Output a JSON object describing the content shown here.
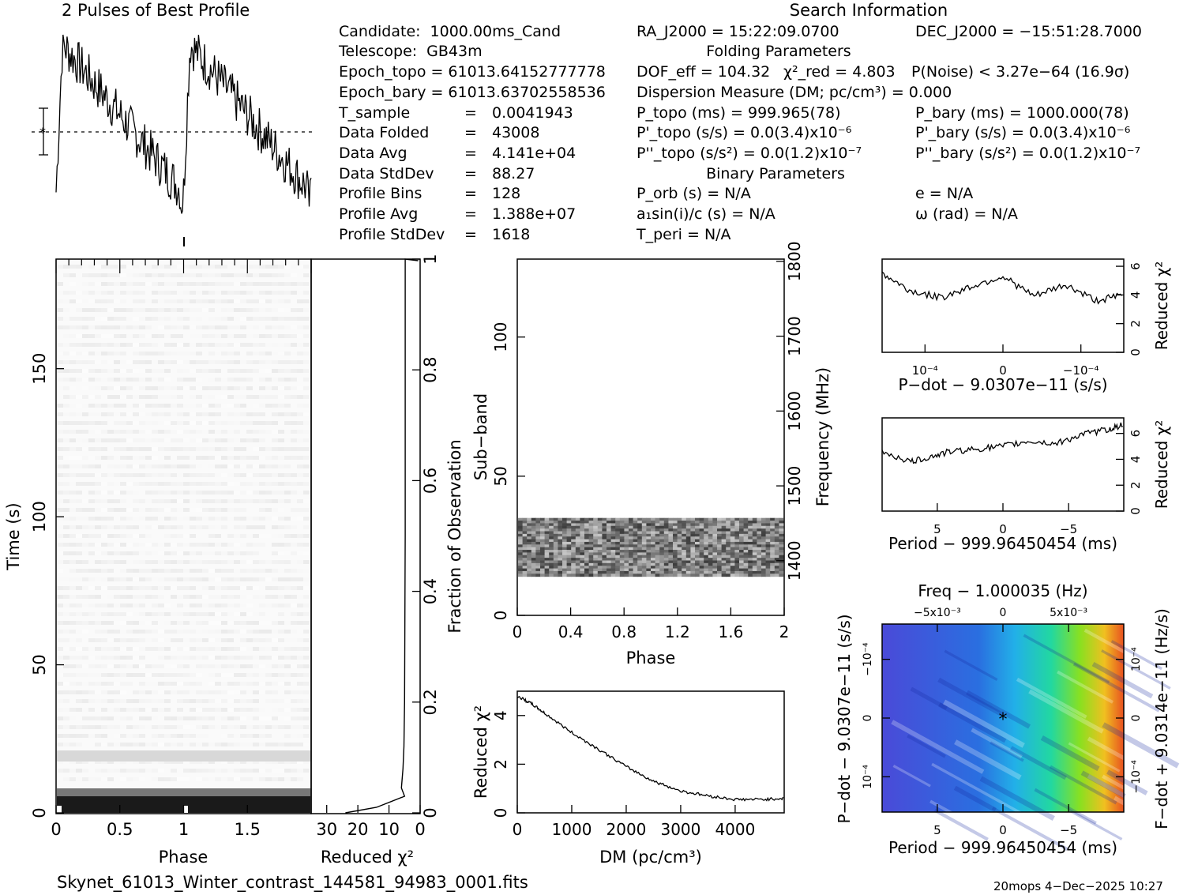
{
  "profile": {
    "title": "2 Pulses of Best Profile"
  },
  "info": {
    "candidate_label": "Candidate:",
    "candidate": "1000.00ms_Cand",
    "telescope_label": "Telescope:",
    "telescope": "GB43m",
    "epoch_topo": "Epoch_topo = 61013.64152777778",
    "epoch_bary": "Epoch_bary = 61013.63702558536",
    "tsample_label": "T_sample",
    "tsample": "0.0041943",
    "data_folded_label": "Data Folded",
    "data_folded": "43008",
    "data_avg_label": "Data Avg",
    "data_avg": "4.141e+04",
    "data_stddev_label": "Data StdDev",
    "data_stddev": "88.27",
    "profile_bins_label": "Profile Bins",
    "profile_bins": "128",
    "profile_avg_label": "Profile Avg",
    "profile_avg": "1.388e+07",
    "profile_stddev_label": "Profile StdDev",
    "profile_stddev": "1618",
    "eq": "="
  },
  "search": {
    "title": "Search Information",
    "ra": "RA_J2000 = 15:22:09.0700",
    "dec": "DEC_J2000 = −15:51:28.7000",
    "folding_title": "Folding Parameters",
    "dof": "DOF_eff = 104.32",
    "chi2": "χ²_red = 4.803",
    "pnoise": "P(Noise) < 3.27e−64   (16.9σ)",
    "dm": "Dispersion Measure (DM; pc/cm³) = 0.000",
    "ptopo": "P_topo (ms) =  999.965(78)",
    "pbary": "P_bary (ms) =  1000.000(78)",
    "pdtopo": "P'_topo (s/s) = 0.0(3.4)x10⁻⁶",
    "pdbary": "P'_bary (s/s) = 0.0(3.4)x10⁻⁶",
    "pddtopo": "P''_topo (s/s²) = 0.0(1.2)x10⁻⁷",
    "pddbary": "P''_bary (s/s²) = 0.0(1.2)x10⁻⁷",
    "binary_title": "Binary Parameters",
    "porb": "P_orb (s) = N/A",
    "ecc": "e = N/A",
    "a1": "a₁sin(i)/c (s) = N/A",
    "omega": "ω (rad) = N/A",
    "tperi": "T_peri = N/A"
  },
  "footer": {
    "filename": "Skynet_61013_Winter_contrast_144581_94983_0001.fits",
    "stamp": "20mops   4−Dec−2025 10:27"
  },
  "colors": {
    "line": "#000000",
    "background": "#ffffff"
  },
  "chart_data": [
    {
      "type": "line",
      "id": "profile",
      "title": "2 Pulses of Best Profile",
      "x_range": [
        0,
        2
      ],
      "description_points_y": [
        0.05,
        0.95,
        0.8,
        0.6,
        0.45,
        0.3,
        0.2,
        0.05,
        0.95,
        0.8,
        0.6,
        0.45,
        0.3,
        0.2
      ]
    },
    {
      "type": "heatmap",
      "id": "time-phase",
      "xlabel": "Phase",
      "ylabel": "Time (s)",
      "x_ticks": [
        "0",
        "0.5",
        "1",
        "1.5"
      ],
      "x_tick_values": [
        0,
        0.5,
        1,
        1.5
      ],
      "y_ticks": [
        "0",
        "50",
        "100",
        "150"
      ],
      "y_tick_values": [
        0,
        50,
        100,
        150
      ],
      "xlim": [
        0,
        2
      ],
      "ylim": [
        0,
        187
      ]
    },
    {
      "type": "line",
      "id": "time-redchi",
      "xlabel": "Reduced χ²",
      "x_ticks": [
        "30",
        "20",
        "10",
        "0"
      ],
      "x_tick_values": [
        30,
        20,
        10,
        0
      ],
      "y2label": "Fraction of Observation",
      "y2_ticks": [
        "0",
        "0.2",
        "0.4",
        "0.6",
        "0.8",
        "1"
      ],
      "y2_tick_values": [
        0,
        0.2,
        0.4,
        0.6,
        0.8,
        1
      ],
      "xlim": [
        35,
        0
      ],
      "points_frac": [
        0,
        0.01,
        0.03,
        0.045,
        0.08,
        0.12,
        0.2,
        0.35,
        0.5,
        0.7,
        0.85,
        0.95,
        1.0
      ],
      "points_chi": [
        24,
        14,
        5,
        6,
        5.5,
        5.2,
        5.0,
        4.9,
        4.8,
        4.8,
        4.8,
        4.8,
        4.8
      ]
    },
    {
      "type": "heatmap",
      "id": "subband-phase",
      "xlabel": "Phase",
      "ylabel": "Sub−band",
      "y2label": "Frequency (MHz)",
      "x_ticks": [
        "0",
        "0.4",
        "0.8",
        "1.2",
        "1.6",
        "2"
      ],
      "x_tick_values": [
        0,
        0.4,
        0.8,
        1.2,
        1.6,
        2
      ],
      "y_ticks": [
        "0",
        "50",
        "100"
      ],
      "y_tick_values": [
        0,
        50,
        100
      ],
      "y2_ticks": [
        "1400",
        "1500",
        "1600",
        "1700",
        "1800"
      ],
      "y2_tick_values": [
        1400,
        1500,
        1600,
        1700,
        1800
      ],
      "ylim": [
        0,
        128
      ],
      "freq_lim": [
        1327,
        1803
      ],
      "active_subbands": [
        14,
        35
      ]
    },
    {
      "type": "line",
      "id": "dm-chi",
      "xlabel": "DM (pc/cm³)",
      "ylabel": "Reduced χ²",
      "x_ticks": [
        "0",
        "1000",
        "2000",
        "3000",
        "4000"
      ],
      "x_tick_values": [
        0,
        1000,
        2000,
        3000,
        4000
      ],
      "y_ticks": [
        "0",
        "2",
        "4"
      ],
      "y_tick_values": [
        0,
        2,
        4
      ],
      "xlim": [
        0,
        4900
      ],
      "ylim": [
        0,
        5
      ],
      "x": [
        0,
        250,
        500,
        1000,
        1500,
        2000,
        2500,
        3000,
        3500,
        4000,
        4500,
        4900
      ],
      "y": [
        4.8,
        4.5,
        4.1,
        3.3,
        2.6,
        1.9,
        1.3,
        0.9,
        0.7,
        0.55,
        0.55,
        0.6
      ]
    },
    {
      "type": "line",
      "id": "pdot-chi",
      "xlabel": "P−dot − 9.0307e−11 (s/s)",
      "y2label": "Reduced χ²",
      "x_ticks": [
        "10⁻⁴",
        "0",
        "−10⁻⁴"
      ],
      "x_tick_values": [
        0.0001,
        0,
        -0.0001
      ],
      "y2_ticks": [
        "0",
        "2",
        "4",
        "6"
      ],
      "y2_tick_values": [
        0,
        2,
        4,
        6
      ],
      "xlim": [
        0.000155,
        -0.000155
      ],
      "ylim": [
        0,
        6.5
      ],
      "x": [
        0.000155,
        0.00012,
        8e-05,
        4e-05,
        0,
        -4e-05,
        -8e-05,
        -0.00012,
        -0.000155
      ],
      "y": [
        5.5,
        4.3,
        3.8,
        4.6,
        5.3,
        3.9,
        4.7,
        3.6,
        4.0
      ]
    },
    {
      "type": "line",
      "id": "period-chi",
      "xlabel": "Period − 999.96450454 (ms)",
      "y2label": "Reduced χ²",
      "x_ticks": [
        "5",
        "0",
        "−5"
      ],
      "x_tick_values": [
        5,
        0,
        -5
      ],
      "y2_ticks": [
        "0",
        "2",
        "4",
        "6"
      ],
      "y2_tick_values": [
        0,
        2,
        4,
        6
      ],
      "xlim": [
        9.2,
        -9.2
      ],
      "ylim": [
        0,
        7.2
      ],
      "x": [
        9.2,
        7,
        5.5,
        4,
        2,
        0,
        -2,
        -4,
        -6,
        -8,
        -9.2
      ],
      "y": [
        4.6,
        3.8,
        4.2,
        4.6,
        4.8,
        5.0,
        5.4,
        5.2,
        5.9,
        6.3,
        6.7
      ]
    },
    {
      "type": "heatmap",
      "id": "ppdot",
      "title": "Freq − 1.000035 (Hz)",
      "xlabel": "Period − 999.96450454 (ms)",
      "ylabel": "P−dot − 9.0307e−11 (s/s)",
      "y2label": "F−dot + 9.0314e−11 (Hz/s)",
      "x_ticks": [
        "5",
        "0",
        "−5"
      ],
      "x_tick_values": [
        5,
        0,
        -5
      ],
      "x2_ticks": [
        "−5x10⁻³",
        "0",
        "5x10⁻³"
      ],
      "x2_tick_values": [
        -0.005,
        0,
        0.005
      ],
      "y_ticks": [
        "10⁻⁴",
        "0",
        "−10⁻⁴"
      ],
      "y_tick_values": [
        0.0001,
        0,
        -0.0001
      ],
      "y2_ticks": [
        "−10⁻⁴",
        "0",
        "10⁻⁴"
      ],
      "y2_tick_values": [
        -0.0001,
        0,
        0.0001
      ],
      "xlim": [
        9.2,
        -9.2
      ],
      "ylim": [
        0.00016,
        -0.00016
      ],
      "best": [
        0,
        0
      ]
    }
  ]
}
